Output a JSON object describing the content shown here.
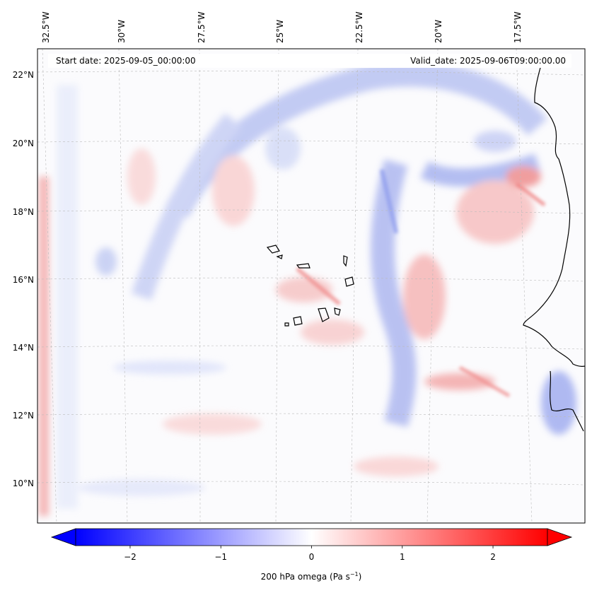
{
  "header": {
    "start_date": "Start date: 2025-09-05_00:00:00",
    "valid_date": "Valid_date: 2025-09-06T09:00:00.00"
  },
  "longitude_labels": [
    "32.5°W",
    "30°W",
    "27.5°W",
    "25°W",
    "22.5°W",
    "20°W",
    "17.5°W"
  ],
  "latitude_labels": [
    "22°N",
    "20°N",
    "18°N",
    "16°N",
    "14°N",
    "12°N",
    "10°N"
  ],
  "colorbar": {
    "title": "200 hPa omega (Pa s",
    "title_exp": "−1",
    "title_close": ")",
    "ticks": [
      "−2",
      "−1",
      "0",
      "1",
      "2"
    ],
    "tick_values": [
      -2,
      -1,
      0,
      1,
      2
    ],
    "range": [
      -2.6,
      2.6
    ],
    "colormap": "bwr",
    "low_color": "#0000ff",
    "mid_color": "#ffffff",
    "high_color": "#ff0000"
  }
}
